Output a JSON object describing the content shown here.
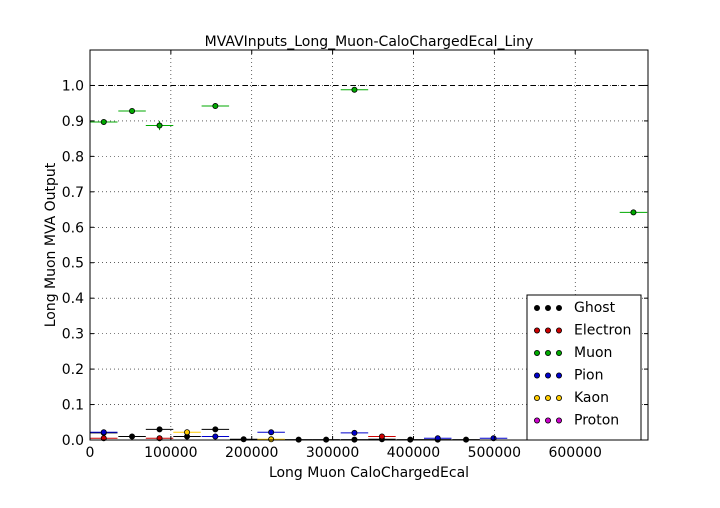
{
  "chart_data": {
    "type": "scatter",
    "title": "MVAVInputs_Long_Muon-CaloChargedEcal_Liny",
    "xlabel": "Long Muon CaloChargedEcal",
    "ylabel": "Long Muon MVA Output",
    "xlim": [
      0,
      690000
    ],
    "ylim": [
      0,
      1.1
    ],
    "x_ticks": [
      0,
      100000,
      200000,
      300000,
      400000,
      500000,
      600000
    ],
    "x_tick_labels": [
      "0",
      "100000",
      "200000",
      "300000",
      "400000",
      "500000",
      "600000"
    ],
    "y_ticks": [
      0.0,
      0.1,
      0.2,
      0.3,
      0.4,
      0.5,
      0.6,
      0.7,
      0.8,
      0.9,
      1.0
    ],
    "y_tick_labels": [
      "0.0",
      "0.1",
      "0.2",
      "0.3",
      "0.4",
      "0.5",
      "0.6",
      "0.7",
      "0.8",
      "0.9",
      "1.0"
    ],
    "reference_line_y": 1.0,
    "grid": true,
    "legend_position": "lower-right",
    "series": [
      {
        "name": "Ghost",
        "color": "#000000",
        "points": [
          {
            "x": 17000,
            "y": 0.02,
            "xerr": 17000,
            "yerr": 0.004
          },
          {
            "x": 52000,
            "y": 0.01,
            "xerr": 17000,
            "yerr": 0.003
          },
          {
            "x": 86000,
            "y": 0.03,
            "xerr": 17000,
            "yerr": 0.004
          },
          {
            "x": 120000,
            "y": 0.01,
            "xerr": 17000,
            "yerr": 0.003
          },
          {
            "x": 155000,
            "y": 0.03,
            "xerr": 17000,
            "yerr": 0.004
          },
          {
            "x": 190000,
            "y": 0.002,
            "xerr": 17000,
            "yerr": 0.002
          },
          {
            "x": 258000,
            "y": 0.001,
            "xerr": 17000,
            "yerr": 0.002
          },
          {
            "x": 292000,
            "y": 0.001,
            "xerr": 17000,
            "yerr": 0.002
          },
          {
            "x": 327000,
            "y": 0.001,
            "xerr": 17000,
            "yerr": 0.002
          },
          {
            "x": 361000,
            "y": 0.002,
            "xerr": 17000,
            "yerr": 0.002
          },
          {
            "x": 396000,
            "y": 0.001,
            "xerr": 17000,
            "yerr": 0.002
          },
          {
            "x": 430000,
            "y": 0.001,
            "xerr": 17000,
            "yerr": 0.002
          },
          {
            "x": 465000,
            "y": 0.001,
            "xerr": 17000,
            "yerr": 0.002
          }
        ]
      },
      {
        "name": "Electron",
        "color": "#cc0000",
        "points": [
          {
            "x": 17000,
            "y": 0.005,
            "xerr": 17000,
            "yerr": 0.003
          },
          {
            "x": 86000,
            "y": 0.005,
            "xerr": 17000,
            "yerr": 0.003
          },
          {
            "x": 361000,
            "y": 0.01,
            "xerr": 17000,
            "yerr": 0.003
          }
        ]
      },
      {
        "name": "Muon",
        "color": "#00aa00",
        "points": [
          {
            "x": 17000,
            "y": 0.897,
            "xerr": 17000,
            "yerr": 0.006
          },
          {
            "x": 52000,
            "y": 0.928,
            "xerr": 17000,
            "yerr": 0.006
          },
          {
            "x": 86000,
            "y": 0.887,
            "xerr": 17000,
            "yerr": 0.013
          },
          {
            "x": 155000,
            "y": 0.942,
            "xerr": 17000,
            "yerr": 0.006
          },
          {
            "x": 327000,
            "y": 0.988,
            "xerr": 17000,
            "yerr": 0.006
          },
          {
            "x": 672000,
            "y": 0.642,
            "xerr": 17000,
            "yerr": 0.006
          }
        ]
      },
      {
        "name": "Pion",
        "color": "#0000cc",
        "points": [
          {
            "x": 17000,
            "y": 0.022,
            "xerr": 17000,
            "yerr": 0.004
          },
          {
            "x": 155000,
            "y": 0.01,
            "xerr": 17000,
            "yerr": 0.003
          },
          {
            "x": 224000,
            "y": 0.022,
            "xerr": 17000,
            "yerr": 0.004
          },
          {
            "x": 327000,
            "y": 0.02,
            "xerr": 17000,
            "yerr": 0.004
          },
          {
            "x": 430000,
            "y": 0.005,
            "xerr": 17000,
            "yerr": 0.003
          },
          {
            "x": 499000,
            "y": 0.005,
            "xerr": 17000,
            "yerr": 0.003
          }
        ]
      },
      {
        "name": "Kaon",
        "color": "#ffcc00",
        "points": [
          {
            "x": 120000,
            "y": 0.022,
            "xerr": 17000,
            "yerr": 0.004
          },
          {
            "x": 224000,
            "y": 0.002,
            "xerr": 17000,
            "yerr": 0.003
          }
        ]
      },
      {
        "name": "Proton",
        "color": "#cc00cc",
        "points": []
      }
    ]
  }
}
